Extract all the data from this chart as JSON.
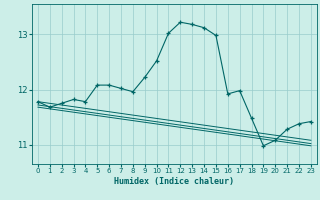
{
  "xlabel": "Humidex (Indice chaleur)",
  "bg_color": "#cceee8",
  "grid_color": "#99cccc",
  "line_color": "#006666",
  "xlim": [
    -0.5,
    23.5
  ],
  "ylim": [
    10.65,
    13.55
  ],
  "xticks": [
    0,
    1,
    2,
    3,
    4,
    5,
    6,
    7,
    8,
    9,
    10,
    11,
    12,
    13,
    14,
    15,
    16,
    17,
    18,
    19,
    20,
    21,
    22,
    23
  ],
  "yticks": [
    11,
    12,
    13
  ],
  "main_x": [
    0,
    1,
    2,
    3,
    4,
    5,
    6,
    7,
    8,
    9,
    10,
    11,
    12,
    13,
    14,
    15,
    16,
    17,
    18,
    19,
    20,
    21,
    22,
    23
  ],
  "main_y": [
    11.78,
    11.68,
    11.75,
    11.82,
    11.78,
    12.08,
    12.08,
    12.02,
    11.96,
    12.22,
    12.52,
    13.02,
    13.22,
    13.18,
    13.12,
    12.98,
    11.92,
    11.98,
    11.48,
    10.98,
    11.08,
    11.28,
    11.38,
    11.42
  ],
  "flat_lines": [
    {
      "x0": 0,
      "y0": 11.78,
      "x1": 23,
      "y1": 11.08
    },
    {
      "x0": 0,
      "y0": 11.72,
      "x1": 23,
      "y1": 11.02
    },
    {
      "x0": 0,
      "y0": 11.68,
      "x1": 23,
      "y1": 10.98
    }
  ]
}
